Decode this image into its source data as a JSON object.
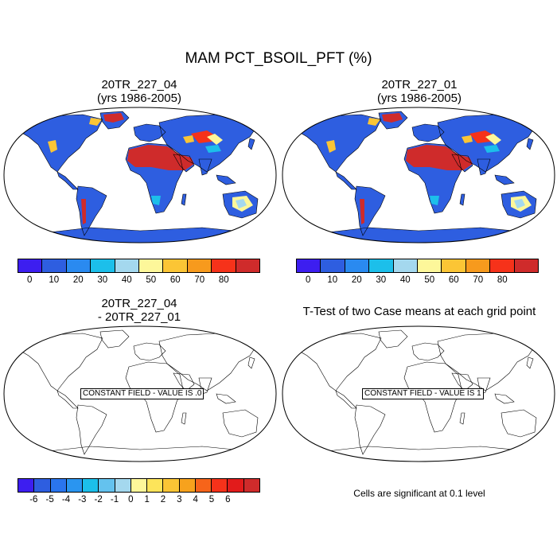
{
  "figure": {
    "main_title": "MAM PCT_BSOIL_PFT (%)"
  },
  "panels": {
    "top_left": {
      "title_line1": "20TR_227_04",
      "title_line2": "(yrs 1986-2005)"
    },
    "top_right": {
      "title_line1": "20TR_227_01",
      "title_line2": "(yrs 1986-2005)"
    },
    "bottom_left": {
      "title_line1": "20TR_227_04",
      "title_line2": "- 20TR_227_01",
      "constant_field": "CONSTANT FIELD - VALUE IS .0"
    },
    "bottom_right": {
      "title_line1": "T-Test of two Case means at each grid point",
      "constant_field": "CONSTANT FIELD - VALUE IS 1",
      "note": "Cells are significant at 0.1 level"
    }
  },
  "colorbars": {
    "field": {
      "colors": [
        "#3d1ef0",
        "#2e5ee0",
        "#2a8af0",
        "#1cbfea",
        "#a4d8ee",
        "#fdf79a",
        "#fbc535",
        "#f79a1d",
        "#f6321a",
        "#cf2b2b"
      ],
      "labels": [
        "0",
        "10",
        "20",
        "30",
        "40",
        "50",
        "60",
        "70",
        "80"
      ]
    },
    "diff": {
      "colors": [
        "#3d1ef0",
        "#2e5ee0",
        "#2a75ee",
        "#2a95f0",
        "#1cbfea",
        "#64c2ee",
        "#a4d8ee",
        "#fdf79a",
        "#fde45a",
        "#fbc535",
        "#f7a21d",
        "#f6641a",
        "#f6321a",
        "#e21b1b",
        "#cf2b2b"
      ],
      "labels": [
        "-6",
        "-5",
        "-4",
        "-3",
        "-2",
        "-1",
        "0",
        "1",
        "2",
        "3",
        "4",
        "5",
        "6"
      ]
    }
  },
  "colors": {
    "ocean": "#ffffff",
    "land_low": "#2e5ee0",
    "desert": "#cf2b2b",
    "coast": "#000000"
  }
}
